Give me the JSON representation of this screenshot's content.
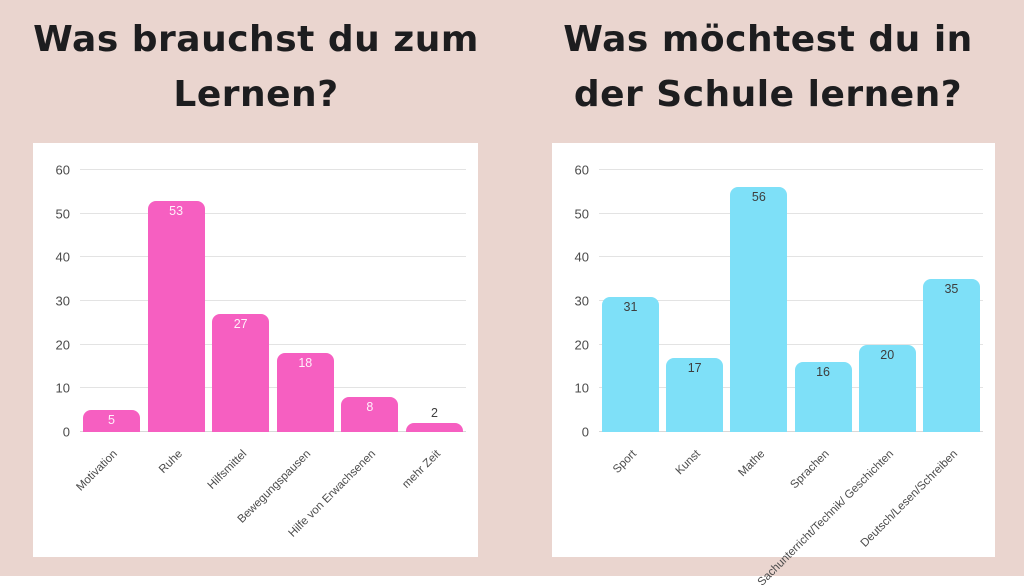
{
  "colors": {
    "background": "#ead5cf",
    "card_background": "#ffffff",
    "title_text": "#1d1d1f",
    "grid_line": "#e3e3e3",
    "axis_baseline": "#d8d8d8",
    "axis_text": "#4b4b4b"
  },
  "chart_data": [
    {
      "type": "bar",
      "title": "Was brauchst du zum Lernen?",
      "categories": [
        "Motivation",
        "Ruhe",
        "Hilfsmittel",
        "Bewegungspausen",
        "Hilfe von Erwachsenen",
        "mehr Zeit"
      ],
      "values": [
        5,
        53,
        27,
        18,
        8,
        2
      ],
      "bar_color": "#f65fc1",
      "value_label_color": "#fff0fb",
      "outside_value_label_color": "#3f3f3f",
      "ylim": [
        0,
        60
      ],
      "yticks": [
        0,
        10,
        20,
        30,
        40,
        50,
        60
      ],
      "grid": true,
      "legend": false,
      "xlabel": "",
      "ylabel": ""
    },
    {
      "type": "bar",
      "title": "Was möchtest du in der Schule lernen?",
      "categories": [
        "Sport",
        "Kunst",
        "Mathe",
        "Sprachen",
        "Sachunterricht/Technik/ Geschichten",
        "Deutsch/Lesen/Schreiben"
      ],
      "values": [
        31,
        17,
        56,
        16,
        20,
        35
      ],
      "bar_color": "#7ee0f8",
      "value_label_color": "#3e3e3e",
      "outside_value_label_color": "#3e3e3e",
      "ylim": [
        0,
        60
      ],
      "yticks": [
        0,
        10,
        20,
        30,
        40,
        50,
        60
      ],
      "grid": true,
      "legend": false,
      "xlabel": "",
      "ylabel": ""
    }
  ]
}
